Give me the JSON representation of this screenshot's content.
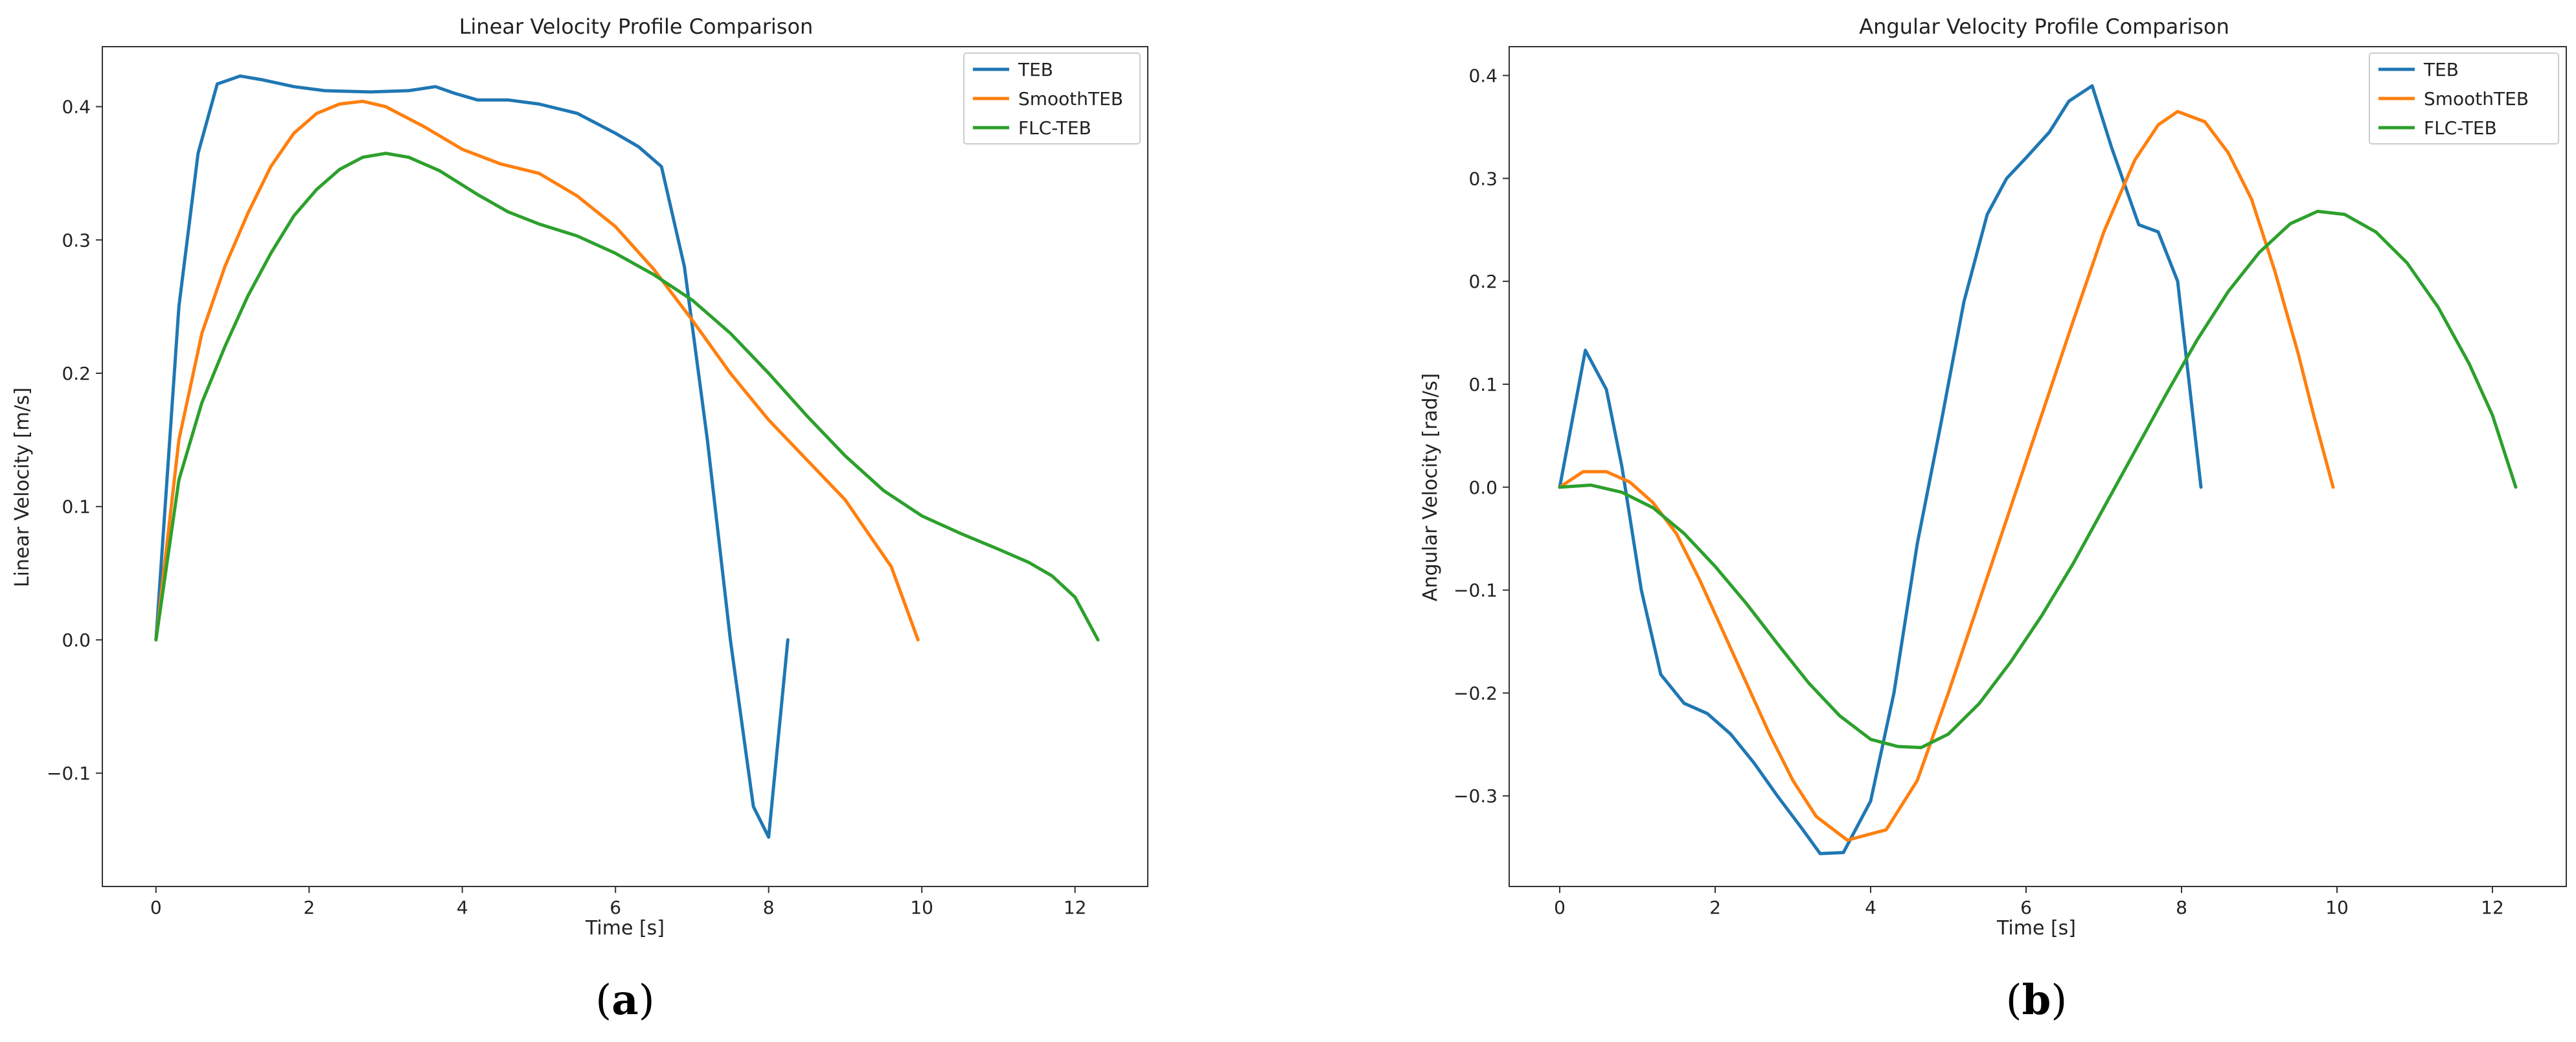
{
  "colors": {
    "TEB": "#1f77b4",
    "SmoothTEB": "#ff7f0e",
    "FLC-TEB": "#2ca02c",
    "axes": "#333333"
  },
  "chart_data": [
    {
      "type": "line",
      "title": "Linear Velocity Profile Comparison",
      "xlabel": "Time [s]",
      "ylabel": "Linear Velocity [m/s]",
      "xlim": [
        -0.7,
        12.95
      ],
      "ylim": [
        -0.185,
        0.445
      ],
      "xticks": [
        0,
        2,
        4,
        6,
        8,
        10,
        12
      ],
      "yticks": [
        -0.1,
        0.0,
        0.1,
        0.2,
        0.3,
        0.4
      ],
      "ytick_labels": [
        "−0.1",
        "0.0",
        "0.1",
        "0.2",
        "0.3",
        "0.4"
      ],
      "legend_position": "top-right",
      "caption": "a",
      "series": [
        {
          "name": "TEB",
          "x": [
            0,
            0.3,
            0.55,
            0.8,
            1.1,
            1.4,
            1.8,
            2.2,
            2.8,
            3.3,
            3.65,
            3.9,
            4.2,
            4.6,
            5.0,
            5.5,
            6.0,
            6.3,
            6.6,
            6.9,
            7.2,
            7.5,
            7.8,
            8.0,
            8.25
          ],
          "y": [
            0.0,
            0.25,
            0.365,
            0.417,
            0.423,
            0.42,
            0.415,
            0.412,
            0.411,
            0.412,
            0.415,
            0.41,
            0.405,
            0.405,
            0.402,
            0.395,
            0.38,
            0.37,
            0.355,
            0.28,
            0.15,
            0.0,
            -0.125,
            -0.148,
            0.0
          ]
        },
        {
          "name": "SmoothTEB",
          "x": [
            0,
            0.3,
            0.6,
            0.9,
            1.2,
            1.5,
            1.8,
            2.1,
            2.4,
            2.7,
            3.0,
            3.5,
            4.0,
            4.5,
            5.0,
            5.5,
            6.0,
            6.5,
            7.0,
            7.5,
            8.0,
            8.5,
            9.0,
            9.3,
            9.6,
            9.95
          ],
          "y": [
            0.0,
            0.15,
            0.23,
            0.28,
            0.32,
            0.355,
            0.38,
            0.395,
            0.402,
            0.404,
            0.4,
            0.385,
            0.368,
            0.357,
            0.35,
            0.333,
            0.31,
            0.278,
            0.24,
            0.2,
            0.165,
            0.135,
            0.105,
            0.08,
            0.055,
            0.0
          ]
        },
        {
          "name": "FLC-TEB",
          "x": [
            0,
            0.3,
            0.6,
            0.9,
            1.2,
            1.5,
            1.8,
            2.1,
            2.4,
            2.7,
            3.0,
            3.3,
            3.7,
            4.2,
            4.6,
            5.0,
            5.5,
            6.0,
            6.5,
            7.0,
            7.5,
            8.0,
            8.5,
            9.0,
            9.5,
            10.0,
            10.5,
            11.0,
            11.4,
            11.7,
            12.0,
            12.3
          ],
          "y": [
            0.0,
            0.12,
            0.178,
            0.22,
            0.258,
            0.29,
            0.318,
            0.338,
            0.353,
            0.362,
            0.365,
            0.362,
            0.352,
            0.334,
            0.321,
            0.312,
            0.303,
            0.29,
            0.274,
            0.255,
            0.23,
            0.2,
            0.168,
            0.138,
            0.112,
            0.093,
            0.08,
            0.068,
            0.058,
            0.048,
            0.032,
            0.0
          ]
        }
      ]
    },
    {
      "type": "line",
      "title": "Angular Velocity Profile Comparison",
      "xlabel": "Time [s]",
      "ylabel": "Angular Velocity [rad/s]",
      "xlim": [
        -0.65,
        12.95
      ],
      "ylim": [
        -0.388,
        0.428
      ],
      "xticks": [
        0,
        2,
        4,
        6,
        8,
        10,
        12
      ],
      "yticks": [
        -0.3,
        -0.2,
        -0.1,
        0.0,
        0.1,
        0.2,
        0.3,
        0.4
      ],
      "ytick_labels": [
        "−0.3",
        "−0.2",
        "−0.1",
        "0.0",
        "0.1",
        "0.2",
        "0.3",
        "0.4"
      ],
      "legend_position": "top-right",
      "caption": "b",
      "series": [
        {
          "name": "TEB",
          "x": [
            0,
            0.33,
            0.6,
            0.8,
            1.05,
            1.3,
            1.6,
            1.9,
            2.2,
            2.5,
            2.8,
            3.1,
            3.35,
            3.65,
            4.0,
            4.3,
            4.6,
            4.9,
            5.2,
            5.5,
            5.75,
            6.0,
            6.3,
            6.55,
            6.85,
            7.1,
            7.45,
            7.7,
            7.95,
            8.25
          ],
          "y": [
            0.0,
            0.133,
            0.095,
            0.02,
            -0.1,
            -0.182,
            -0.21,
            -0.22,
            -0.24,
            -0.268,
            -0.3,
            -0.33,
            -0.356,
            -0.355,
            -0.305,
            -0.2,
            -0.055,
            0.06,
            0.18,
            0.265,
            0.3,
            0.32,
            0.345,
            0.375,
            0.39,
            0.33,
            0.255,
            0.248,
            0.2,
            0.0
          ]
        },
        {
          "name": "SmoothTEB",
          "x": [
            0,
            0.3,
            0.6,
            0.9,
            1.2,
            1.5,
            1.8,
            2.1,
            2.4,
            2.7,
            3.0,
            3.3,
            3.7,
            4.2,
            4.6,
            5.0,
            5.4,
            5.8,
            6.2,
            6.6,
            7.0,
            7.4,
            7.7,
            7.95,
            8.3,
            8.6,
            8.9,
            9.2,
            9.5,
            9.7,
            9.95
          ],
          "y": [
            0.0,
            0.015,
            0.015,
            0.005,
            -0.015,
            -0.045,
            -0.09,
            -0.14,
            -0.19,
            -0.24,
            -0.285,
            -0.32,
            -0.343,
            -0.333,
            -0.285,
            -0.2,
            -0.11,
            -0.02,
            0.07,
            0.16,
            0.248,
            0.318,
            0.352,
            0.365,
            0.355,
            0.325,
            0.28,
            0.21,
            0.13,
            0.07,
            0.0
          ]
        },
        {
          "name": "FLC-TEB",
          "x": [
            0,
            0.4,
            0.8,
            1.2,
            1.6,
            2.0,
            2.4,
            2.8,
            3.2,
            3.6,
            4.0,
            4.35,
            4.65,
            5.0,
            5.4,
            5.8,
            6.2,
            6.6,
            7.0,
            7.4,
            7.8,
            8.2,
            8.6,
            9.0,
            9.4,
            9.75,
            10.1,
            10.5,
            10.9,
            11.3,
            11.7,
            12.0,
            12.3
          ],
          "y": [
            0.0,
            0.002,
            -0.005,
            -0.02,
            -0.045,
            -0.077,
            -0.113,
            -0.152,
            -0.19,
            -0.222,
            -0.245,
            -0.252,
            -0.253,
            -0.24,
            -0.21,
            -0.17,
            -0.125,
            -0.075,
            -0.02,
            0.035,
            0.09,
            0.143,
            0.19,
            0.228,
            0.256,
            0.268,
            0.265,
            0.248,
            0.218,
            0.175,
            0.12,
            0.07,
            0.0
          ]
        }
      ]
    }
  ]
}
